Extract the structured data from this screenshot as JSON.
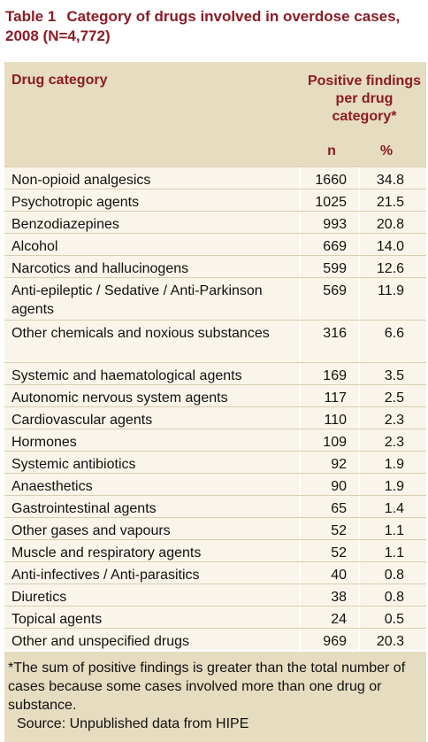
{
  "table_label": "Table 1",
  "title": "Category of drugs involved in overdose cases, 2008 (N=4,772)",
  "table": {
    "header": {
      "category": "Drug category",
      "findings": "Positive findings per drug category*",
      "n": "n",
      "pct": "%"
    },
    "rows": [
      [
        "Non-opioid analgesics",
        "1660",
        "34.8"
      ],
      [
        "Psychotropic agents",
        "1025",
        "21.5"
      ],
      [
        "Benzodiazepines",
        "993",
        "20.8"
      ],
      [
        "Alcohol",
        "669",
        "14.0"
      ],
      [
        "Narcotics and hallucinogens",
        "599",
        "12.6"
      ],
      [
        "Anti-epileptic / Sedative / Anti-Parkinson agents",
        "569",
        "11.9"
      ],
      [
        "Other chemicals and noxious substances",
        "316",
        "6.6"
      ],
      [
        "Systemic and haematological agents",
        "169",
        "3.5"
      ],
      [
        "Autonomic nervous system agents",
        "117",
        "2.5"
      ],
      [
        "Cardiovascular agents",
        "110",
        "2.3"
      ],
      [
        "Hormones",
        "109",
        "2.3"
      ],
      [
        "Systemic antibiotics",
        "92",
        "1.9"
      ],
      [
        "Anaesthetics",
        "90",
        "1.9"
      ],
      [
        "Gastrointestinal agents",
        "65",
        "1.4"
      ],
      [
        "Other gases and vapours",
        "52",
        "1.1"
      ],
      [
        "Muscle and respiratory agents",
        "52",
        "1.1"
      ],
      [
        "Anti-infectives / Anti-parasitics",
        "40",
        "0.8"
      ],
      [
        "Diuretics",
        "38",
        "0.8"
      ],
      [
        "Topical agents",
        "24",
        "0.5"
      ],
      [
        "Other and unspecified drugs",
        "969",
        "20.3"
      ]
    ]
  },
  "footnote": "*The sum of positive findings is greater than the total number of cases because some cases involved more than one drug or substance.",
  "source": "Source: Unpublished data from HIPE"
}
